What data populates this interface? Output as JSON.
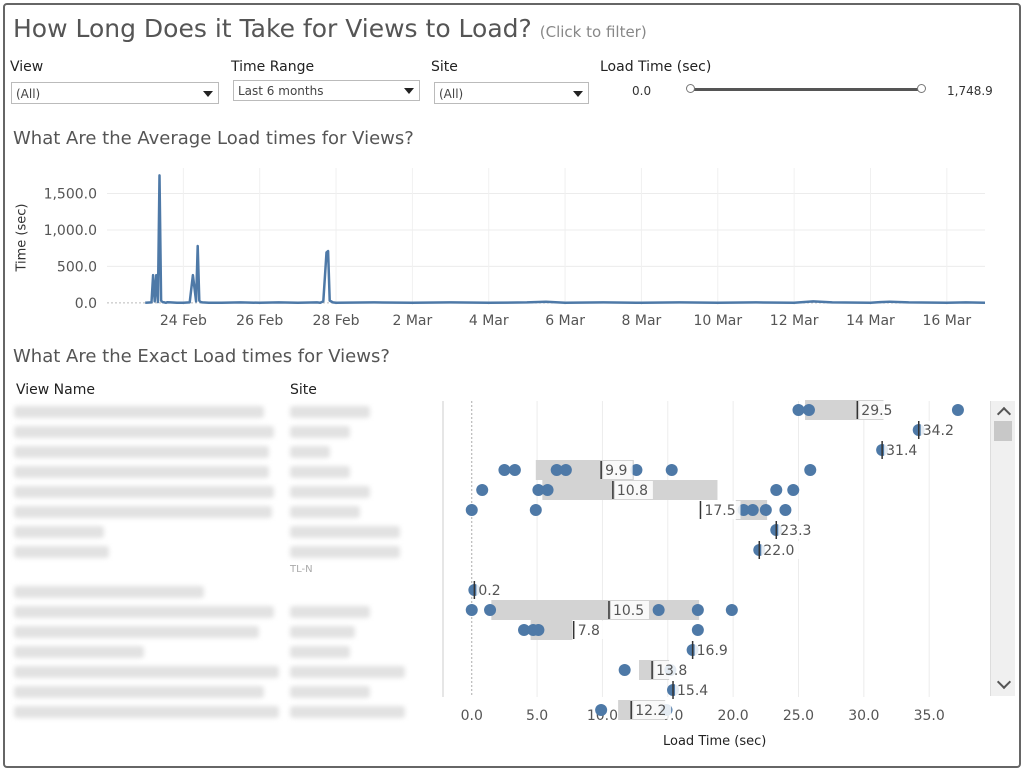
{
  "title": "How Long Does it Take for Views to Load?",
  "title_hint": "(Click to filter)",
  "filters": {
    "view": {
      "label": "View",
      "value": "(All)"
    },
    "time_range": {
      "label": "Time Range",
      "value": "Last 6 months"
    },
    "site": {
      "label": "Site",
      "value": "(All)"
    },
    "load_time": {
      "label": "Load Time (sec)",
      "min": "0.0",
      "max": "1,748.9"
    }
  },
  "avg_section": {
    "title": "What Are the Average Load times for Views?"
  },
  "exact_section": {
    "title": "What Are the Exact Load times for Views?",
    "col_view": "View Name",
    "col_site": "Site",
    "site_visible": {
      "row9": "TL-N"
    }
  },
  "colors": {
    "accent": "#4e79a7",
    "band": "#d3d3d3",
    "text": "#555555"
  },
  "chart_data": [
    {
      "type": "line",
      "title": "What Are the Average Load times for Views?",
      "xlabel": "",
      "ylabel": "Time (sec)",
      "x_ticks": [
        "24 Feb",
        "26 Feb",
        "28 Feb",
        "2 Mar",
        "4 Mar",
        "6 Mar",
        "8 Mar",
        "10 Mar",
        "12 Mar",
        "14 Mar",
        "16 Mar"
      ],
      "y_ticks": [
        "0.0",
        "500.0",
        "1,000.0",
        "1,500.0"
      ],
      "ylim": [
        -30,
        1850
      ],
      "xlim_days": [
        "22 Feb",
        "17 Mar"
      ],
      "grid": true,
      "series": [
        {
          "x": [
            "23 Feb 00:00",
            "23 Feb 04:00",
            "23 Feb 05:00",
            "23 Feb 06:00",
            "23 Feb 07:00",
            "23 Feb 08:00",
            "23 Feb 09:00",
            "23 Feb 10:00",
            "23 Feb 11:00",
            "23 Feb 12:00",
            "23 Feb 13:00",
            "23 Feb 14:00",
            "23 Feb 16:00",
            "23 Feb 20:00",
            "24 Feb 00:00",
            "24 Feb 04:00",
            "24 Feb 06:00",
            "24 Feb 08:00",
            "24 Feb 09:00",
            "24 Feb 10:00",
            "24 Feb 11:00",
            "24 Feb 12:00",
            "24 Feb 16:00",
            "25 Feb 00:00",
            "25 Feb 12:00",
            "26 Feb 00:00",
            "26 Feb 12:00",
            "27 Feb 00:00",
            "27 Feb 12:00",
            "27 Feb 14:00",
            "27 Feb 16:00",
            "27 Feb 18:00",
            "27 Feb 19:00",
            "27 Feb 20:00",
            "27 Feb 22:00",
            "28 Feb 00:00",
            "1 Mar 00:00",
            "2 Mar 00:00",
            "3 Mar 00:00",
            "4 Mar 00:00",
            "5 Mar 00:00",
            "5 Mar 12:00",
            "6 Mar 00:00",
            "7 Mar 00:00",
            "8 Mar 00:00",
            "9 Mar 00:00",
            "10 Mar 00:00",
            "11 Mar 00:00",
            "12 Mar 00:00",
            "12 Mar 12:00",
            "13 Mar 00:00",
            "14 Mar 00:00",
            "14 Mar 06:00",
            "14 Mar 12:00",
            "15 Mar 00:00",
            "16 Mar 00:00",
            "16 Mar 12:00",
            "17 Mar 00:00"
          ],
          "values": [
            0,
            5,
            380,
            20,
            380,
            10,
            1748,
            30,
            10,
            5,
            0,
            8,
            5,
            0,
            0,
            5,
            380,
            20,
            780,
            30,
            10,
            5,
            0,
            0,
            5,
            0,
            5,
            0,
            5,
            0,
            20,
            690,
            710,
            30,
            5,
            0,
            5,
            0,
            5,
            0,
            5,
            15,
            0,
            5,
            0,
            5,
            0,
            5,
            0,
            20,
            5,
            0,
            10,
            15,
            5,
            0,
            5,
            0
          ]
        }
      ]
    },
    {
      "type": "scatter",
      "title": "What Are the Exact Load times for Views?",
      "xlabel": "Load Time (sec)",
      "ylabel": "",
      "x_ticks": [
        "0.0",
        "5.0",
        "10.0",
        "15.0",
        "20.0",
        "25.0",
        "30.0",
        "35.0"
      ],
      "xlim": [
        -2.2,
        39.5
      ],
      "rows": [
        {
          "points": [
            25.0,
            25.8,
            37.2
          ],
          "band": [
            25.5,
            31.5
          ],
          "ref": 29.5,
          "label": "29.5"
        },
        {
          "points": [
            34.2
          ],
          "band": null,
          "ref": 34.2,
          "label": "34.2"
        },
        {
          "points": [
            31.4
          ],
          "band": null,
          "ref": 31.4,
          "label": "31.4"
        },
        {
          "points": [
            2.5,
            3.3,
            6.5,
            7.2,
            12.6,
            15.3,
            25.9
          ],
          "band": [
            4.9,
            12.4
          ],
          "ref": 9.9,
          "label": "9.9"
        },
        {
          "points": [
            0.8,
            5.1,
            5.8,
            23.3,
            24.6
          ],
          "band": [
            5.4,
            18.8
          ],
          "ref": 10.8,
          "label": "10.8"
        },
        {
          "points": [
            0.0,
            4.9,
            20.8,
            21.5,
            22.5,
            24.0
          ],
          "band": [
            20.2,
            22.6
          ],
          "ref": 17.5,
          "label": "17.5"
        },
        {
          "points": [
            23.3
          ],
          "band": null,
          "ref": 23.3,
          "label": "23.3"
        },
        {
          "points": [
            22.0
          ],
          "band": null,
          "ref": 22.0,
          "label": "22.0"
        },
        {
          "points": [],
          "band": null,
          "ref": null,
          "label": ""
        },
        {
          "points": [
            0.2
          ],
          "band": null,
          "ref": 0.2,
          "label": "0.2"
        },
        {
          "points": [
            0.0,
            1.4,
            14.3,
            17.3,
            19.9
          ],
          "band": [
            1.5,
            17.4
          ],
          "ref": 10.5,
          "label": "10.5"
        },
        {
          "points": [
            4.0,
            4.7,
            5.1,
            17.3
          ],
          "band": [
            4.5,
            7.7
          ],
          "ref": 7.8,
          "label": "7.8"
        },
        {
          "points": [
            16.9
          ],
          "band": null,
          "ref": 16.9,
          "label": "16.9"
        },
        {
          "points": [
            11.7,
            15.2
          ],
          "band": [
            12.8,
            15.1
          ],
          "ref": 13.8,
          "label": "13.8"
        },
        {
          "points": [
            15.4
          ],
          "band": null,
          "ref": 15.4,
          "label": "15.4"
        },
        {
          "points": [
            9.9,
            14.9
          ],
          "band": [
            11.2,
            14.8
          ],
          "ref": 12.2,
          "label": "12.2"
        }
      ]
    }
  ]
}
